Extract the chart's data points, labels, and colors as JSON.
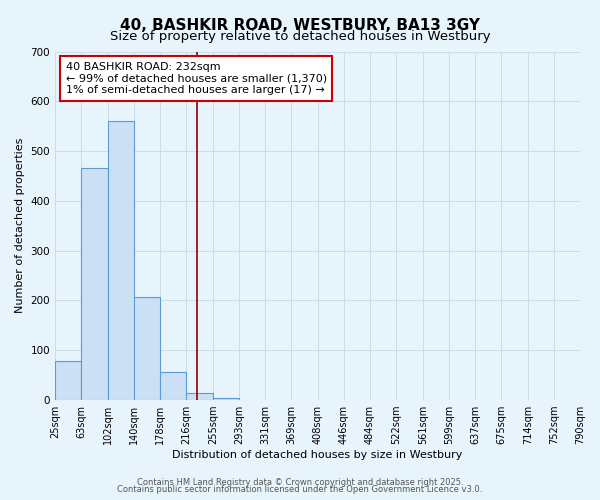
{
  "title": "40, BASHKIR ROAD, WESTBURY, BA13 3GY",
  "subtitle": "Size of property relative to detached houses in Westbury",
  "xlabel": "Distribution of detached houses by size in Westbury",
  "ylabel": "Number of detached properties",
  "bin_edges": [
    25,
    63,
    102,
    140,
    178,
    216,
    255,
    293,
    331,
    369,
    408,
    446,
    484,
    522,
    561,
    599,
    637,
    675,
    714,
    752,
    790
  ],
  "bar_heights": [
    78,
    467,
    560,
    207,
    57,
    15,
    5,
    0,
    0,
    0,
    0,
    0,
    0,
    0,
    0,
    0,
    0,
    0,
    0,
    0
  ],
  "bar_color": "#cce0f5",
  "bar_edgecolor": "#5b9bd5",
  "vline_x": 232,
  "vline_color": "#8b0000",
  "annotation_line1": "40 BASHKIR ROAD: 232sqm",
  "annotation_line2": "← 99% of detached houses are smaller (1,370)",
  "annotation_line3": "1% of semi-detached houses are larger (17) →",
  "ylim": [
    0,
    700
  ],
  "yticks": [
    0,
    100,
    200,
    300,
    400,
    500,
    600,
    700
  ],
  "background_color": "#e8f4fc",
  "grid_color": "#c8dcea",
  "footer_line1": "Contains HM Land Registry data © Crown copyright and database right 2025.",
  "footer_line2": "Contains public sector information licensed under the Open Government Licence v3.0.",
  "title_fontsize": 11,
  "subtitle_fontsize": 9.5,
  "tick_fontsize": 7,
  "ylabel_fontsize": 8,
  "xlabel_fontsize": 8,
  "annotation_fontsize": 8,
  "footer_fontsize": 6
}
